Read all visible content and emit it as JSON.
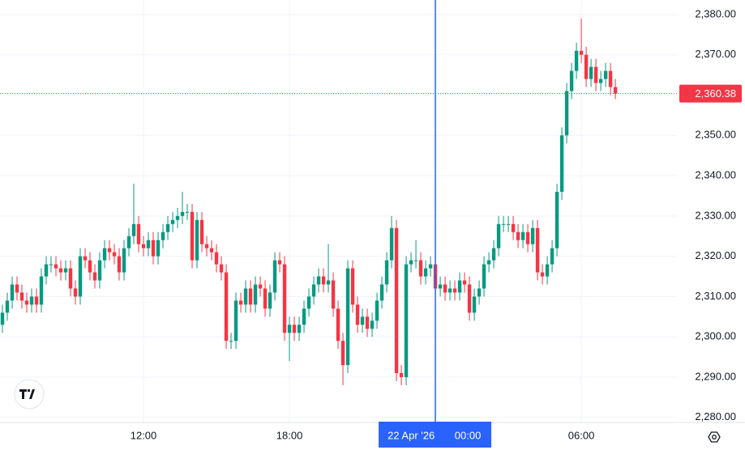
{
  "chart_data": {
    "type": "candlestick",
    "up_color": "#089981",
    "down_color": "#f23645",
    "x": [
      6.2,
      6.4,
      6.6,
      6.8,
      7,
      7.2,
      7.4,
      7.6,
      7.8,
      8,
      8.2,
      8.4,
      8.6,
      8.8,
      9,
      9.2,
      9.4,
      9.6,
      9.8,
      10,
      10.2,
      10.4,
      10.6,
      10.8,
      11,
      11.2,
      11.4,
      11.6,
      11.8,
      12,
      12.2,
      12.4,
      12.6,
      12.8,
      13,
      13.2,
      13.4,
      13.6,
      13.8,
      14,
      14.2,
      14.4,
      14.6,
      14.8,
      15,
      15.2,
      15.4,
      15.6,
      15.8,
      16,
      16.2,
      16.4,
      16.6,
      16.8,
      17,
      17.2,
      17.4,
      17.6,
      17.8,
      18,
      18.2,
      18.4,
      18.6,
      18.8,
      19,
      19.2,
      19.4,
      19.6,
      19.8,
      20,
      20.2,
      20.4,
      20.6,
      20.8,
      21,
      21.2,
      21.4,
      21.6,
      21.8,
      22,
      22.2,
      22.4,
      22.6,
      22.8,
      23,
      23.2,
      23.4,
      23.6,
      23.8,
      24,
      24.2,
      24.4,
      24.6,
      24.8,
      25,
      25.2,
      25.4,
      25.6,
      25.8,
      26,
      26.2,
      26.4,
      26.6,
      26.8,
      27,
      27.2,
      27.4,
      27.6,
      27.8,
      28,
      28.2,
      28.4,
      28.6,
      28.8,
      29,
      29.2,
      29.4,
      29.6,
      29.8,
      30,
      30.2,
      30.4,
      30.6,
      30.8,
      31,
      31.2,
      31.4
    ],
    "open": [
      2303,
      2306,
      2309,
      2313,
      2311,
      2309,
      2308,
      2310,
      2308,
      2315,
      2318,
      2318,
      2317,
      2316,
      2317,
      2312,
      2310,
      2320,
      2319,
      2316,
      2314,
      2319,
      2322,
      2321,
      2320,
      2316,
      2322,
      2325,
      2328,
      2323,
      2322,
      2324,
      2320,
      2324,
      2326,
      2328,
      2329,
      2330,
      2331,
      2331,
      2319,
      2329,
      2323,
      2322,
      2321,
      2318,
      2316,
      2299,
      2299,
      2309,
      2308,
      2312,
      2308,
      2313,
      2312,
      2307,
      2311,
      2319,
      2318,
      2301,
      2303,
      2301,
      2303,
      2307,
      2310,
      2313,
      2315,
      2313,
      2314,
      2307,
      2299,
      2293,
      2317,
      2308,
      2303,
      2305,
      2302,
      2304,
      2309,
      2313,
      2319,
      2327,
      2291,
      2290,
      2318,
      2319,
      2319,
      2315,
      2317,
      2318,
      2312,
      2313,
      2311,
      2312,
      2311,
      2314,
      2313,
      2306,
      2310,
      2312,
      2318,
      2319,
      2322,
      2328,
      2328,
      2328,
      2326,
      2324,
      2326,
      2323,
      2327,
      2316,
      2315,
      2318,
      2322,
      2336,
      2350,
      2361,
      2366,
      2371,
      2370,
      2364,
      2367,
      2363,
      2364,
      2366,
      2362
    ],
    "high": [
      2308,
      2311,
      2315,
      2315,
      2313,
      2311,
      2312,
      2312,
      2317,
      2320,
      2320,
      2320,
      2319,
      2319,
      2319,
      2314,
      2322,
      2322,
      2321,
      2318,
      2321,
      2324,
      2324,
      2323,
      2322,
      2324,
      2327,
      2338,
      2330,
      2325,
      2326,
      2326,
      2326,
      2328,
      2330,
      2331,
      2332,
      2336,
      2333,
      2333,
      2331,
      2331,
      2325,
      2324,
      2323,
      2320,
      2318,
      2301,
      2311,
      2311,
      2314,
      2314,
      2315,
      2315,
      2314,
      2313,
      2321,
      2321,
      2320,
      2305,
      2305,
      2305,
      2309,
      2312,
      2315,
      2317,
      2317,
      2323,
      2316,
      2309,
      2301,
      2319,
      2319,
      2310,
      2307,
      2307,
      2306,
      2311,
      2315,
      2321,
      2330,
      2329,
      2293,
      2320,
      2321,
      2324,
      2321,
      2319,
      2320,
      2320,
      2315,
      2315,
      2314,
      2314,
      2316,
      2316,
      2315,
      2312,
      2314,
      2320,
      2321,
      2324,
      2330,
      2330,
      2330,
      2330,
      2328,
      2328,
      2328,
      2329,
      2329,
      2318,
      2320,
      2324,
      2338,
      2352,
      2363,
      2368,
      2373,
      2379,
      2372,
      2369,
      2369,
      2366,
      2368,
      2368,
      2364
    ],
    "low": [
      2301,
      2304,
      2307,
      2309,
      2307,
      2306,
      2306,
      2306,
      2306,
      2313,
      2316,
      2315,
      2314,
      2314,
      2310,
      2308,
      2308,
      2317,
      2314,
      2312,
      2312,
      2317,
      2319,
      2318,
      2314,
      2314,
      2320,
      2323,
      2321,
      2320,
      2320,
      2318,
      2318,
      2322,
      2324,
      2326,
      2327,
      2328,
      2329,
      2317,
      2317,
      2321,
      2320,
      2319,
      2316,
      2314,
      2297,
      2297,
      2297,
      2306,
      2306,
      2306,
      2306,
      2310,
      2305,
      2305,
      2309,
      2316,
      2299,
      2294,
      2299,
      2299,
      2301,
      2305,
      2308,
      2311,
      2311,
      2311,
      2305,
      2297,
      2288,
      2291,
      2306,
      2301,
      2301,
      2300,
      2300,
      2302,
      2307,
      2311,
      2317,
      2289,
      2288,
      2288,
      2316,
      2317,
      2313,
      2313,
      2315,
      2310,
      2310,
      2309,
      2309,
      2309,
      2309,
      2311,
      2304,
      2304,
      2308,
      2310,
      2316,
      2317,
      2320,
      2326,
      2326,
      2324,
      2322,
      2322,
      2321,
      2321,
      2314,
      2313,
      2313,
      2316,
      2320,
      2334,
      2348,
      2359,
      2364,
      2368,
      2362,
      2362,
      2361,
      2361,
      2362,
      2360,
      2359
    ],
    "close": [
      2306,
      2309,
      2313,
      2311,
      2309,
      2308,
      2310,
      2308,
      2315,
      2318,
      2318,
      2317,
      2316,
      2317,
      2312,
      2310,
      2320,
      2319,
      2316,
      2314,
      2319,
      2322,
      2321,
      2320,
      2316,
      2322,
      2325,
      2328,
      2323,
      2322,
      2324,
      2320,
      2324,
      2326,
      2328,
      2329,
      2330,
      2331,
      2331,
      2319,
      2329,
      2323,
      2322,
      2321,
      2318,
      2316,
      2299,
      2299,
      2309,
      2308,
      2312,
      2308,
      2313,
      2312,
      2307,
      2311,
      2319,
      2318,
      2301,
      2303,
      2301,
      2303,
      2307,
      2310,
      2313,
      2315,
      2313,
      2314,
      2307,
      2299,
      2293,
      2317,
      2308,
      2303,
      2305,
      2302,
      2304,
      2309,
      2313,
      2319,
      2327,
      2291,
      2290,
      2318,
      2319,
      2319,
      2315,
      2317,
      2318,
      2312,
      2313,
      2311,
      2312,
      2311,
      2314,
      2313,
      2306,
      2310,
      2312,
      2318,
      2319,
      2322,
      2328,
      2328,
      2328,
      2326,
      2324,
      2326,
      2323,
      2327,
      2316,
      2315,
      2318,
      2322,
      2336,
      2350,
      2361,
      2366,
      2371,
      2370,
      2364,
      2367,
      2363,
      2364,
      2366,
      2362,
      2360.38
    ],
    "xlim": [
      6.1,
      33.93
    ],
    "xticks": [
      {
        "value": 12,
        "label": "12:00"
      },
      {
        "value": 18,
        "label": "18:00"
      },
      {
        "value": 30,
        "label": "06:00"
      }
    ],
    "ylim": [
      2278.75,
      2383.6
    ],
    "yticks": [
      {
        "value": 2280,
        "label": "2,280.00"
      },
      {
        "value": 2290,
        "label": "2,290.00"
      },
      {
        "value": 2300,
        "label": "2,300.00"
      },
      {
        "value": 2310,
        "label": "2,310.00"
      },
      {
        "value": 2320,
        "label": "2,320.00"
      },
      {
        "value": 2330,
        "label": "2,330.00"
      },
      {
        "value": 2340,
        "label": "2,340.00"
      },
      {
        "value": 2350,
        "label": "2,350.00"
      },
      {
        "value": 2360,
        "label": "2,360.00"
      },
      {
        "value": 2370,
        "label": "2,370.00"
      },
      {
        "value": 2380,
        "label": "2,380.00"
      }
    ],
    "grid": true,
    "last_price": {
      "value": 2360.38,
      "label": "2,360.38",
      "color": "#f23645"
    },
    "crosshair": {
      "x": 24,
      "date_label": "22 Apr '26",
      "time_label": "00:00",
      "color": "#2962ff"
    }
  }
}
